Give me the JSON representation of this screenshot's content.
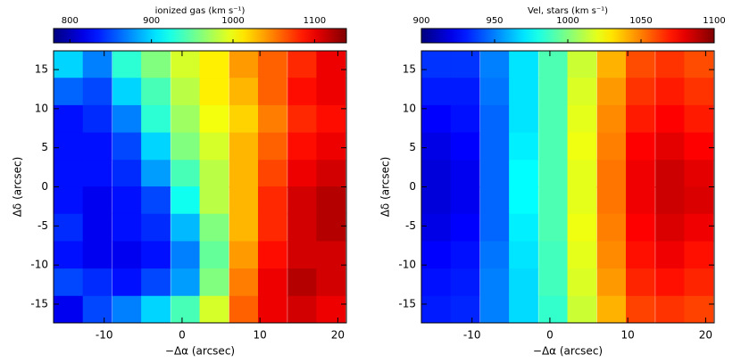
{
  "chart_data": [
    {
      "type": "heatmap",
      "title": "ionized gas (km s⁻¹)",
      "x_label": "−Δα (arcsec)",
      "y_label": "Δδ (arcsec)",
      "colormap": "jet",
      "x": [
        -14.6,
        -10.9,
        -7.1,
        -3.4,
        0.4,
        4.1,
        7.9,
        11.6,
        15.4,
        19.1
      ],
      "y": [
        15.7,
        12.2,
        8.7,
        5.2,
        1.7,
        -1.7,
        -5.2,
        -8.7,
        -12.2,
        -15.7
      ],
      "z": [
        [
          900,
          870,
          930,
          960,
          990,
          1010,
          1040,
          1060,
          1080,
          1100
        ],
        [
          860,
          850,
          900,
          940,
          980,
          1010,
          1030,
          1060,
          1090,
          1100
        ],
        [
          830,
          840,
          870,
          930,
          970,
          1000,
          1020,
          1050,
          1080,
          1090
        ],
        [
          830,
          830,
          850,
          900,
          960,
          990,
          1030,
          1060,
          1090,
          1100
        ],
        [
          830,
          830,
          840,
          880,
          940,
          980,
          1030,
          1070,
          1100,
          1110
        ],
        [
          830,
          820,
          830,
          850,
          920,
          980,
          1030,
          1080,
          1110,
          1120
        ],
        [
          840,
          820,
          830,
          840,
          890,
          960,
          1030,
          1080,
          1110,
          1120
        ],
        [
          830,
          820,
          820,
          830,
          870,
          950,
          1040,
          1090,
          1110,
          1110
        ],
        [
          850,
          840,
          830,
          850,
          880,
          960,
          1050,
          1100,
          1120,
          1110
        ],
        [
          820,
          850,
          870,
          900,
          940,
          990,
          1060,
          1100,
          1110,
          1100
        ]
      ],
      "xlim": [
        -16.5,
        21.1
      ],
      "ylim": [
        -17.4,
        17.4
      ],
      "xticks": [
        -10,
        0,
        10,
        20
      ],
      "yticks": [
        -15,
        -10,
        -5,
        0,
        5,
        10,
        15
      ],
      "zlim": [
        780,
        1139
      ],
      "zticks": [
        800,
        900,
        1000,
        1100
      ]
    },
    {
      "type": "heatmap",
      "title": "Vel, stars (km s⁻¹)",
      "x_label": "−Δα (arcsec)",
      "y_label": "Δδ (arcsec)",
      "colormap": "jet",
      "x": [
        -14.6,
        -10.9,
        -7.1,
        -3.4,
        0.4,
        4.1,
        7.9,
        11.6,
        15.4,
        19.1
      ],
      "y": [
        15.7,
        12.2,
        8.7,
        5.2,
        1.7,
        -1.7,
        -5.2,
        -8.7,
        -12.2,
        -15.7
      ],
      "z": [
        [
          935,
          935,
          950,
          970,
          990,
          1015,
          1040,
          1060,
          1065,
          1060
        ],
        [
          930,
          930,
          948,
          970,
          990,
          1018,
          1045,
          1065,
          1070,
          1065
        ],
        [
          925,
          928,
          945,
          970,
          990,
          1020,
          1048,
          1070,
          1075,
          1070
        ],
        [
          920,
          925,
          945,
          972,
          990,
          1022,
          1050,
          1075,
          1080,
          1075
        ],
        [
          918,
          922,
          945,
          975,
          990,
          1020,
          1052,
          1078,
          1085,
          1080
        ],
        [
          918,
          922,
          945,
          975,
          990,
          1020,
          1052,
          1078,
          1085,
          1082
        ],
        [
          920,
          925,
          945,
          972,
          990,
          1022,
          1050,
          1075,
          1082,
          1078
        ],
        [
          925,
          928,
          948,
          970,
          988,
          1020,
          1048,
          1072,
          1078,
          1072
        ],
        [
          928,
          930,
          950,
          968,
          988,
          1018,
          1045,
          1068,
          1072,
          1068
        ],
        [
          930,
          932,
          950,
          968,
          985,
          1015,
          1040,
          1062,
          1065,
          1062
        ]
      ],
      "xlim": [
        -16.5,
        21.1
      ],
      "ylim": [
        -17.4,
        17.4
      ],
      "xticks": [
        -10,
        0,
        10,
        20
      ],
      "yticks": [
        -15,
        -10,
        -5,
        0,
        5,
        10,
        15
      ],
      "zlim": [
        900,
        1100
      ],
      "zticks": [
        900,
        950,
        1000,
        1050,
        1100
      ]
    }
  ]
}
